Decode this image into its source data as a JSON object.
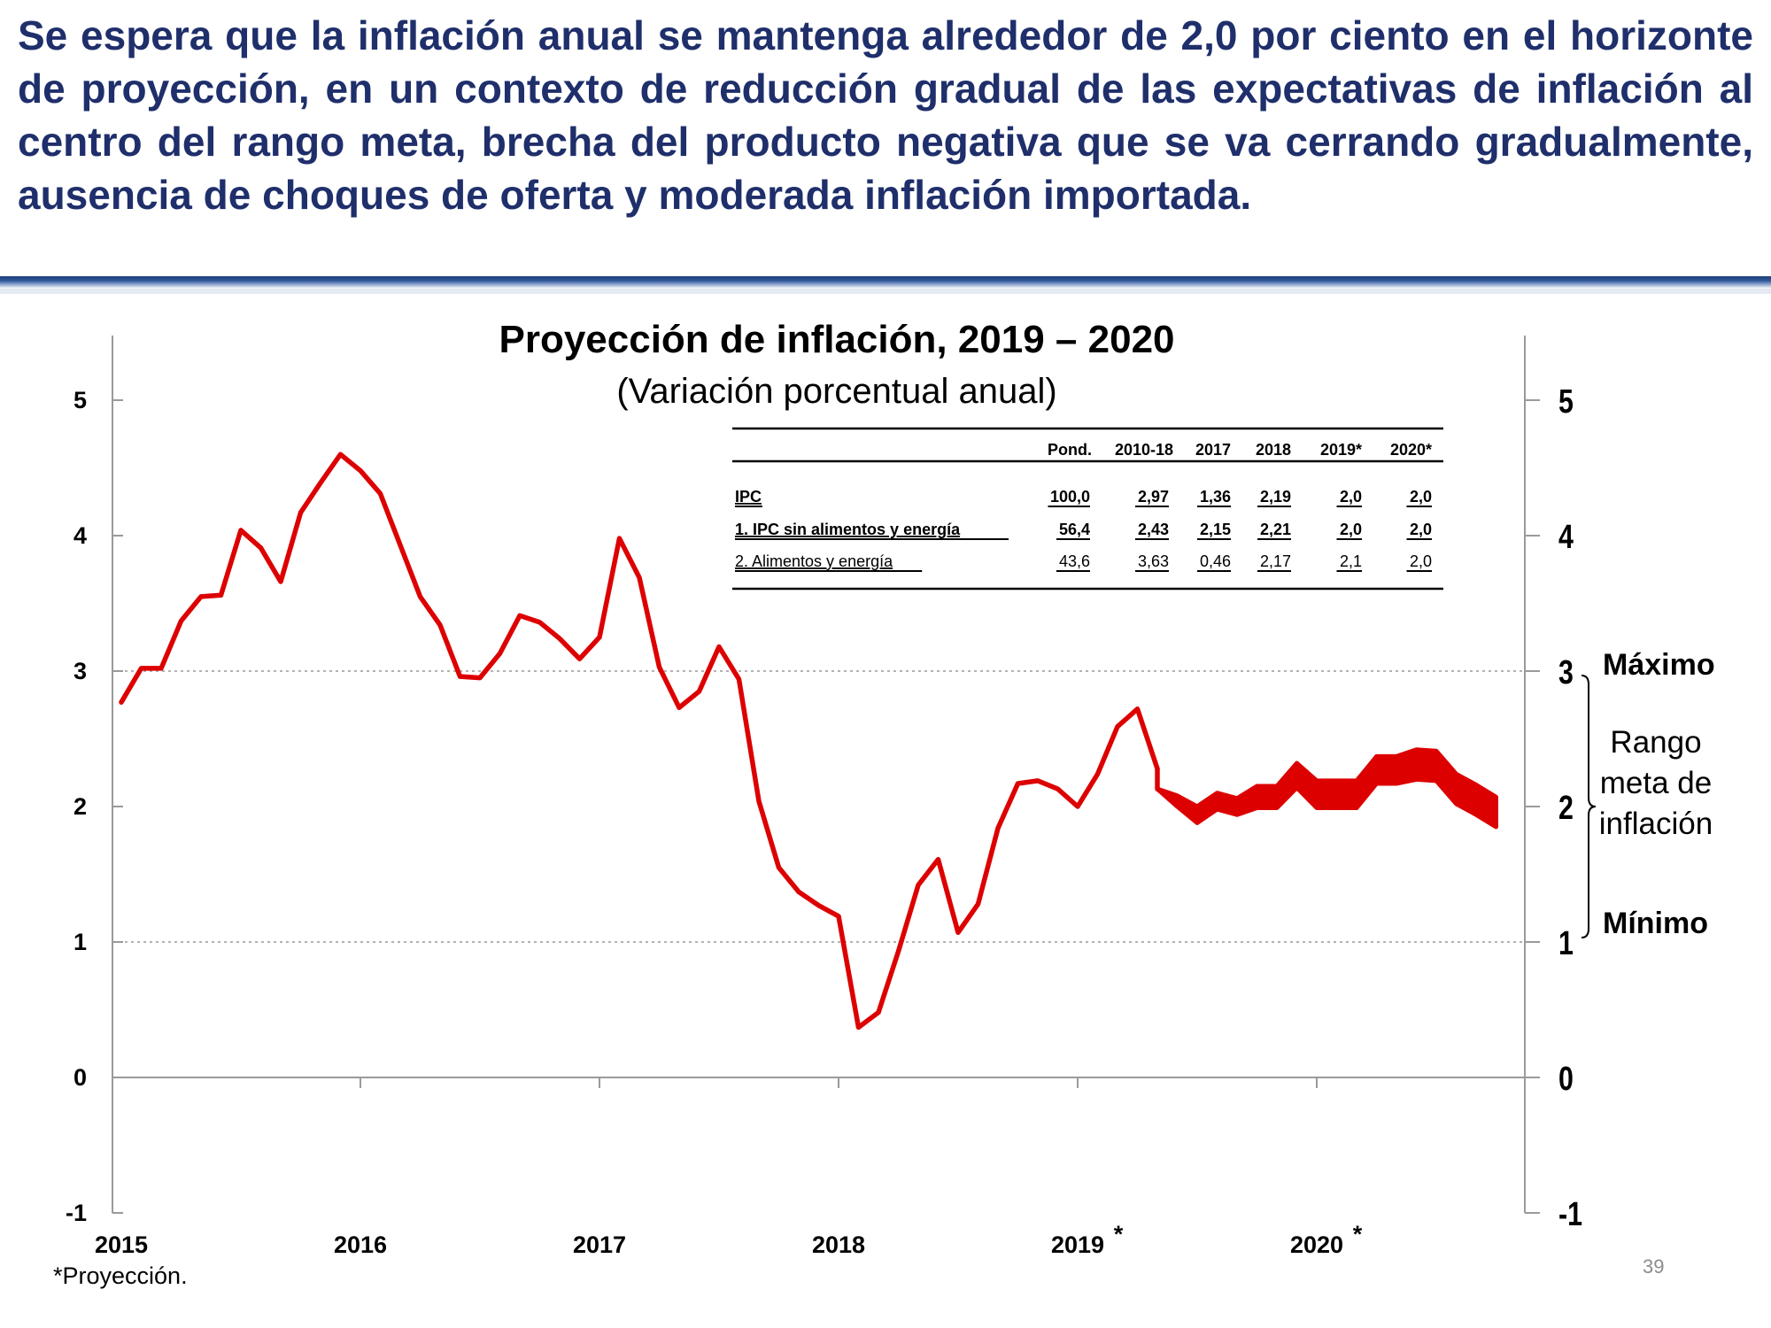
{
  "headline": "Se espera que la inflación anual se mantenga alrededor de 2,0 por ciento en el horizonte de proyección, en un contexto de reducción gradual de las expectativas de inflación al centro del rango meta, brecha del producto negativa que se va cerrando gradualmente, ausencia de choques de oferta y moderada inflación importada.",
  "colors": {
    "headline": "#1f2f6b",
    "series": "#dd0000",
    "rule_dark": "#1f3f7a",
    "rule_light": "#b8c6e0"
  },
  "footnote": "*Proyección.",
  "slide_number": "39",
  "target_range": {
    "max_label": "Máximo",
    "min_label": "Mínimo",
    "range_label_lines": [
      "Rango",
      "meta de",
      "inflación"
    ],
    "max": 3,
    "min": 1,
    "center": 2
  },
  "table": {
    "headers": [
      "",
      "Pond.",
      "2010-18",
      "2017",
      "2018",
      "2019*",
      "2020*"
    ],
    "rows": [
      {
        "label": "IPC",
        "values": [
          "100,0",
          "2,97",
          "1,36",
          "2,19",
          "2,0",
          "2,0"
        ]
      },
      {
        "label": "1. IPC sin alimentos y energía",
        "values": [
          "56,4",
          "2,43",
          "2,15",
          "2,21",
          "2,0",
          "2,0"
        ]
      },
      {
        "label": "2. Alimentos y energía",
        "values": [
          "43,6",
          "3,63",
          "0,46",
          "2,17",
          "2,1",
          "2,0"
        ]
      }
    ]
  },
  "chart_data": {
    "type": "line",
    "title": "Proyección de inflación, 2019 – 2020",
    "subtitle": "(Variación porcentual anual)",
    "xlabel": "",
    "ylabel": "",
    "x_tick_labels": [
      "2015",
      "2016",
      "2017",
      "2018",
      "2019",
      "2020"
    ],
    "x_tick_markers": [
      "",
      "",
      "",
      "",
      "*",
      "*"
    ],
    "x_range": [
      2015,
      2021
    ],
    "ylim": [
      -1,
      5
    ],
    "y_ticks": [
      -1,
      0,
      1,
      2,
      3,
      4,
      5
    ],
    "gridlines_at": [
      1,
      3
    ],
    "secondary_y_axis": true,
    "series": [
      {
        "values": [
          2.77,
          3.02,
          3.02,
          3.37,
          3.55,
          3.56,
          4.04,
          3.91,
          3.66,
          4.17,
          4.39,
          4.6,
          4.48,
          4.31,
          3.93,
          3.55,
          3.34,
          2.96,
          2.95,
          3.13,
          3.41,
          3.36,
          3.24,
          3.09,
          3.25,
          3.98,
          3.69,
          3.03,
          2.73,
          2.85,
          3.18,
          2.94,
          2.04,
          1.55,
          1.37,
          1.27,
          1.19,
          0.37,
          0.48,
          0.93,
          1.42,
          1.61,
          1.07,
          1.28,
          1.84,
          2.17,
          2.19,
          2.13,
          2.0,
          2.24,
          2.59,
          2.72,
          2.28
        ]
      },
      {
        "values_center": [
          2.13,
          2.04,
          1.94,
          2.04,
          2.0,
          2.07,
          2.07,
          2.23,
          2.09,
          2.09,
          2.09,
          2.27,
          2.27,
          2.31,
          2.3,
          2.13,
          2.05,
          1.96
        ],
        "band_halfwidth": [
          0.0,
          0.04,
          0.06,
          0.06,
          0.06,
          0.08,
          0.08,
          0.09,
          0.1,
          0.1,
          0.1,
          0.1,
          0.1,
          0.11,
          0.11,
          0.11,
          0.11,
          0.11
        ],
        "start_index": 52
      }
    ]
  }
}
